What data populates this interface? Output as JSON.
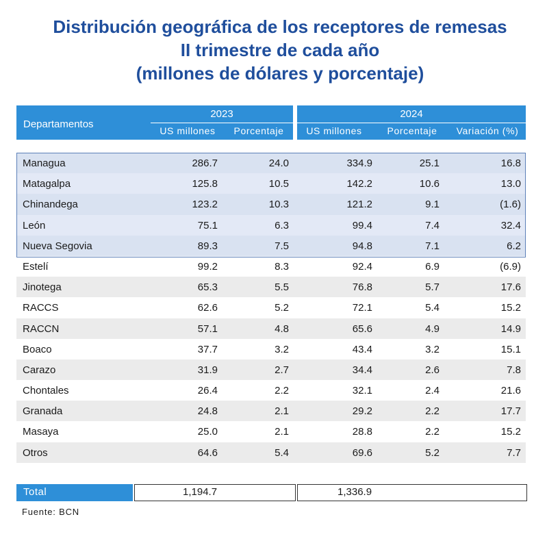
{
  "title": {
    "line1": "Distribución geográfica de los receptores de remesas",
    "line2": "II trimestre de cada año",
    "line3": "(millones de dólares y porcentaje)"
  },
  "table": {
    "dept_header": "Departamentos",
    "year1": "2023",
    "year2": "2024",
    "sub_usd": "US millones",
    "sub_pct": "Porcentaje",
    "sub_var": "Variación (%)",
    "rows": [
      {
        "name": "Managua",
        "v1": "286.7",
        "p1": "24.0",
        "v2": "334.9",
        "p2": "25.1",
        "var": "16.8"
      },
      {
        "name": "Matagalpa",
        "v1": "125.8",
        "p1": "10.5",
        "v2": "142.2",
        "p2": "10.6",
        "var": "13.0"
      },
      {
        "name": "Chinandega",
        "v1": "123.2",
        "p1": "10.3",
        "v2": "121.2",
        "p2": "9.1",
        "var": "(1.6)"
      },
      {
        "name": "León",
        "v1": "75.1",
        "p1": "6.3",
        "v2": "99.4",
        "p2": "7.4",
        "var": "32.4"
      },
      {
        "name": "Nueva Segovia",
        "v1": "89.3",
        "p1": "7.5",
        "v2": "94.8",
        "p2": "7.1",
        "var": "6.2"
      },
      {
        "name": "Estelí",
        "v1": "99.2",
        "p1": "8.3",
        "v2": "92.4",
        "p2": "6.9",
        "var": "(6.9)"
      },
      {
        "name": "Jinotega",
        "v1": "65.3",
        "p1": "5.5",
        "v2": "76.8",
        "p2": "5.7",
        "var": "17.6"
      },
      {
        "name": "RACCS",
        "v1": "62.6",
        "p1": "5.2",
        "v2": "72.1",
        "p2": "5.4",
        "var": "15.2"
      },
      {
        "name": "RACCN",
        "v1": "57.1",
        "p1": "4.8",
        "v2": "65.6",
        "p2": "4.9",
        "var": "14.9"
      },
      {
        "name": "Boaco",
        "v1": "37.7",
        "p1": "3.2",
        "v2": "43.4",
        "p2": "3.2",
        "var": "15.1"
      },
      {
        "name": "Carazo",
        "v1": "31.9",
        "p1": "2.7",
        "v2": "34.4",
        "p2": "2.6",
        "var": "7.8"
      },
      {
        "name": "Chontales",
        "v1": "26.4",
        "p1": "2.2",
        "v2": "32.1",
        "p2": "2.4",
        "var": "21.6"
      },
      {
        "name": "Granada",
        "v1": "24.8",
        "p1": "2.1",
        "v2": "29.2",
        "p2": "2.2",
        "var": "17.7"
      },
      {
        "name": "Masaya",
        "v1": "25.0",
        "p1": "2.1",
        "v2": "28.8",
        "p2": "2.2",
        "var": "15.2"
      },
      {
        "name": "Otros",
        "v1": "64.6",
        "p1": "5.4",
        "v2": "69.6",
        "p2": "5.2",
        "var": "7.7"
      }
    ],
    "total_label": "Total",
    "total_v1": "1,194.7",
    "total_v2": "1,336.9"
  },
  "source": "Fuente: BCN",
  "colors": {
    "title": "#1f4e9c",
    "header_bg": "#2e8fd8",
    "highlight_row": "#e3e9f6",
    "alt_row": "#ebebeb"
  }
}
